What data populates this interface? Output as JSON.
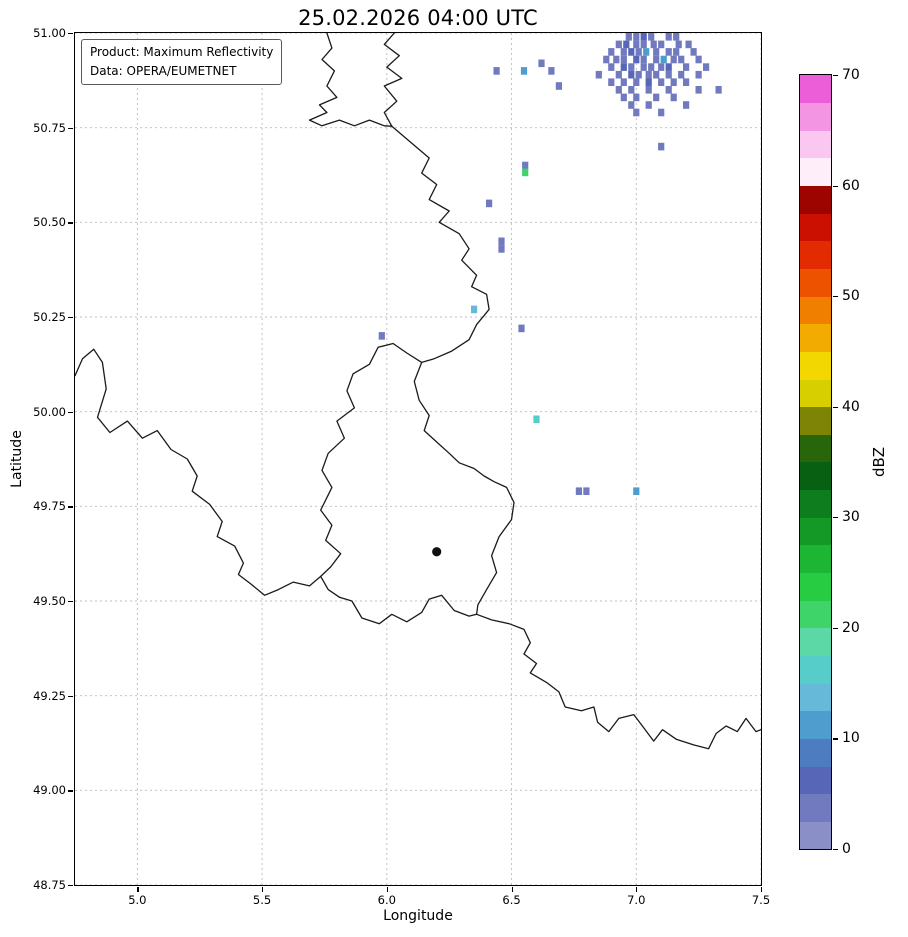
{
  "title": "25.02.2026 04:00 UTC",
  "info_box": {
    "line1": "Product: Maximum Reflectivity",
    "line2": "Data: OPERA/EUMETNET"
  },
  "chart_data": {
    "type": "heatmap",
    "title": "25.02.2026 04:00 UTC",
    "xlabel": "Longitude",
    "ylabel": "Latitude",
    "xlim": [
      4.75,
      7.5
    ],
    "ylim": [
      48.75,
      51.0
    ],
    "grid": true,
    "xticks": [
      {
        "v": 5.0,
        "label": "5.0"
      },
      {
        "v": 5.5,
        "label": "5.5"
      },
      {
        "v": 6.0,
        "label": "6.0"
      },
      {
        "v": 6.5,
        "label": "6.5"
      },
      {
        "v": 7.0,
        "label": "7.0"
      },
      {
        "v": 7.5,
        "label": "7.5"
      }
    ],
    "yticks": [
      {
        "v": 48.75,
        "label": "48.75"
      },
      {
        "v": 49.0,
        "label": "49.00"
      },
      {
        "v": 49.25,
        "label": "49.25"
      },
      {
        "v": 49.5,
        "label": "49.50"
      },
      {
        "v": 49.75,
        "label": "49.75"
      },
      {
        "v": 50.0,
        "label": "50.00"
      },
      {
        "v": 50.25,
        "label": "50.25"
      },
      {
        "v": 50.5,
        "label": "50.50"
      },
      {
        "v": 50.75,
        "label": "50.75"
      },
      {
        "v": 51.0,
        "label": "51.00"
      }
    ],
    "colorbar": {
      "label": "dBZ",
      "min": 0,
      "max": 70,
      "ticks": [
        {
          "v": 0,
          "label": "0"
        },
        {
          "v": 10,
          "label": "10"
        },
        {
          "v": 20,
          "label": "20"
        },
        {
          "v": 30,
          "label": "30"
        },
        {
          "v": 40,
          "label": "40"
        },
        {
          "v": 50,
          "label": "50"
        },
        {
          "v": 60,
          "label": "60"
        },
        {
          "v": 70,
          "label": "70"
        }
      ]
    },
    "colormap": [
      {
        "v": 0.0,
        "c": "#8a8fc7"
      },
      {
        "v": 2.5,
        "c": "#717abf"
      },
      {
        "v": 5.0,
        "c": "#5766b6"
      },
      {
        "v": 7.5,
        "c": "#4d7cc0"
      },
      {
        "v": 10.0,
        "c": "#4f9ccf"
      },
      {
        "v": 12.5,
        "c": "#66b9d9"
      },
      {
        "v": 15.0,
        "c": "#57cdc9"
      },
      {
        "v": 17.5,
        "c": "#5bd8a6"
      },
      {
        "v": 20.0,
        "c": "#3fd46a"
      },
      {
        "v": 22.5,
        "c": "#28cc42"
      },
      {
        "v": 25.0,
        "c": "#1db534"
      },
      {
        "v": 27.5,
        "c": "#149927"
      },
      {
        "v": 30.0,
        "c": "#0d7d1d"
      },
      {
        "v": 32.5,
        "c": "#086113"
      },
      {
        "v": 35.0,
        "c": "#29650b"
      },
      {
        "v": 37.5,
        "c": "#7e8406"
      },
      {
        "v": 40.0,
        "c": "#d8cf00"
      },
      {
        "v": 42.5,
        "c": "#f2d800"
      },
      {
        "v": 45.0,
        "c": "#f2ab00"
      },
      {
        "v": 47.5,
        "c": "#f07f00"
      },
      {
        "v": 50.0,
        "c": "#ec5200"
      },
      {
        "v": 52.5,
        "c": "#e22b00"
      },
      {
        "v": 55.0,
        "c": "#cb0f00"
      },
      {
        "v": 57.5,
        "c": "#9d0400"
      },
      {
        "v": 60.0,
        "c": "#fdeefa"
      },
      {
        "v": 62.5,
        "c": "#f9c7ef"
      },
      {
        "v": 65.0,
        "c": "#f495e3"
      },
      {
        "v": 67.5,
        "c": "#ec5ed8"
      }
    ],
    "cell_size": {
      "lon": 0.025,
      "lat": 0.02
    },
    "radar_cells": [
      [
        6.97,
        50.99,
        3
      ],
      [
        7.0,
        50.99,
        3
      ],
      [
        7.03,
        50.99,
        6
      ],
      [
        7.06,
        50.99,
        3
      ],
      [
        7.13,
        50.99,
        3
      ],
      [
        7.16,
        50.99,
        3
      ],
      [
        6.93,
        50.97,
        3
      ],
      [
        6.96,
        50.97,
        6
      ],
      [
        7.0,
        50.97,
        3
      ],
      [
        7.03,
        50.97,
        3
      ],
      [
        7.07,
        50.97,
        3
      ],
      [
        7.1,
        50.97,
        3
      ],
      [
        7.17,
        50.97,
        3
      ],
      [
        7.21,
        50.97,
        3
      ],
      [
        6.9,
        50.95,
        3
      ],
      [
        6.95,
        50.95,
        3
      ],
      [
        6.98,
        50.95,
        6
      ],
      [
        7.01,
        50.95,
        3
      ],
      [
        7.04,
        50.95,
        10
      ],
      [
        7.08,
        50.95,
        3
      ],
      [
        7.13,
        50.95,
        3
      ],
      [
        7.16,
        50.95,
        3
      ],
      [
        7.23,
        50.95,
        3
      ],
      [
        6.88,
        50.93,
        3
      ],
      [
        6.92,
        50.93,
        3
      ],
      [
        6.95,
        50.93,
        3
      ],
      [
        7.0,
        50.93,
        6
      ],
      [
        7.03,
        50.93,
        3
      ],
      [
        7.08,
        50.93,
        3
      ],
      [
        7.11,
        50.93,
        10
      ],
      [
        7.15,
        50.93,
        3
      ],
      [
        7.18,
        50.93,
        3
      ],
      [
        7.25,
        50.93,
        3
      ],
      [
        6.9,
        50.91,
        3
      ],
      [
        6.95,
        50.91,
        6
      ],
      [
        6.98,
        50.91,
        3
      ],
      [
        7.03,
        50.91,
        3
      ],
      [
        7.06,
        50.91,
        3
      ],
      [
        7.1,
        50.91,
        3
      ],
      [
        7.13,
        50.91,
        6
      ],
      [
        7.2,
        50.91,
        3
      ],
      [
        7.28,
        50.91,
        3
      ],
      [
        6.85,
        50.89,
        3
      ],
      [
        6.93,
        50.89,
        3
      ],
      [
        6.98,
        50.89,
        6
      ],
      [
        7.01,
        50.89,
        3
      ],
      [
        7.05,
        50.89,
        3
      ],
      [
        7.08,
        50.89,
        3
      ],
      [
        7.13,
        50.89,
        3
      ],
      [
        7.18,
        50.89,
        3
      ],
      [
        7.25,
        50.89,
        3
      ],
      [
        6.9,
        50.87,
        3
      ],
      [
        6.95,
        50.87,
        3
      ],
      [
        7.0,
        50.87,
        3
      ],
      [
        7.05,
        50.87,
        6
      ],
      [
        7.1,
        50.87,
        3
      ],
      [
        7.15,
        50.87,
        3
      ],
      [
        7.2,
        50.87,
        3
      ],
      [
        6.93,
        50.85,
        3
      ],
      [
        6.98,
        50.85,
        3
      ],
      [
        7.05,
        50.85,
        3
      ],
      [
        7.13,
        50.85,
        3
      ],
      [
        7.25,
        50.85,
        3
      ],
      [
        7.33,
        50.85,
        3
      ],
      [
        6.95,
        50.83,
        3
      ],
      [
        7.0,
        50.83,
        3
      ],
      [
        7.08,
        50.83,
        3
      ],
      [
        7.15,
        50.83,
        3
      ],
      [
        6.98,
        50.81,
        3
      ],
      [
        7.05,
        50.81,
        3
      ],
      [
        7.2,
        50.81,
        3
      ],
      [
        7.0,
        50.79,
        3
      ],
      [
        7.1,
        50.79,
        3
      ],
      [
        6.62,
        50.92,
        3
      ],
      [
        6.66,
        50.9,
        3
      ],
      [
        6.55,
        50.9,
        10
      ],
      [
        6.44,
        50.9,
        3
      ],
      [
        6.69,
        50.86,
        3
      ],
      [
        7.1,
        50.7,
        3
      ],
      [
        6.555,
        50.65,
        3
      ],
      [
        6.555,
        50.632,
        22
      ],
      [
        6.41,
        50.55,
        3
      ],
      [
        6.46,
        50.45,
        3
      ],
      [
        6.46,
        50.43,
        3
      ],
      [
        6.35,
        50.27,
        13
      ],
      [
        6.54,
        50.22,
        3
      ],
      [
        5.98,
        50.2,
        3
      ],
      [
        6.6,
        49.98,
        17
      ],
      [
        6.77,
        49.79,
        3
      ],
      [
        6.8,
        49.79,
        3
      ],
      [
        7.0,
        49.79,
        10
      ]
    ],
    "borders": [
      [
        [
          5.76,
          51.0
        ],
        [
          5.78,
          50.96
        ],
        [
          5.74,
          50.93
        ],
        [
          5.79,
          50.9
        ],
        [
          5.76,
          50.86
        ],
        [
          5.8,
          50.83
        ],
        [
          5.73,
          50.81
        ],
        [
          5.76,
          50.79
        ],
        [
          5.69,
          50.77
        ],
        [
          5.74,
          50.755
        ],
        [
          5.81,
          50.77
        ],
        [
          5.87,
          50.755
        ],
        [
          5.93,
          50.77
        ],
        [
          5.99,
          50.755
        ],
        [
          6.02,
          50.754
        ]
      ],
      [
        [
          6.02,
          50.754
        ],
        [
          5.99,
          50.79
        ],
        [
          6.04,
          50.82
        ],
        [
          5.99,
          50.86
        ],
        [
          6.06,
          50.88
        ],
        [
          6.0,
          50.91
        ],
        [
          6.05,
          50.94
        ],
        [
          5.99,
          50.97
        ],
        [
          6.03,
          51.0
        ]
      ],
      [
        [
          6.02,
          50.754
        ],
        [
          6.08,
          50.72
        ],
        [
          6.17,
          50.67
        ],
        [
          6.14,
          50.63
        ],
        [
          6.2,
          50.6
        ],
        [
          6.17,
          50.56
        ],
        [
          6.25,
          50.53
        ],
        [
          6.21,
          50.5
        ],
        [
          6.29,
          50.47
        ],
        [
          6.33,
          50.43
        ],
        [
          6.3,
          50.4
        ],
        [
          6.36,
          50.36
        ],
        [
          6.34,
          50.33
        ],
        [
          6.4,
          50.31
        ],
        [
          6.41,
          50.27
        ],
        [
          6.36,
          50.23
        ],
        [
          6.33,
          50.19
        ],
        [
          6.26,
          50.16
        ],
        [
          6.19,
          50.14
        ],
        [
          6.14,
          50.13
        ],
        [
          6.11,
          50.08
        ],
        [
          6.13,
          50.03
        ],
        [
          6.17,
          49.99
        ],
        [
          6.15,
          49.95
        ],
        [
          6.2,
          49.92
        ],
        [
          6.25,
          49.89
        ],
        [
          6.29,
          49.865
        ],
        [
          6.35,
          49.85
        ],
        [
          6.39,
          49.83
        ],
        [
          6.43,
          49.815
        ],
        [
          6.48,
          49.8
        ],
        [
          6.51,
          49.76
        ],
        [
          6.5,
          49.715
        ],
        [
          6.45,
          49.67
        ],
        [
          6.42,
          49.62
        ],
        [
          6.44,
          49.575
        ],
        [
          6.4,
          49.53
        ],
        [
          6.365,
          49.49
        ],
        [
          6.36,
          49.465
        ],
        [
          6.42,
          49.45
        ],
        [
          6.49,
          49.44
        ],
        [
          6.55,
          49.425
        ],
        [
          6.575,
          49.39
        ],
        [
          6.55,
          49.36
        ],
        [
          6.6,
          49.335
        ],
        [
          6.575,
          49.31
        ],
        [
          6.64,
          49.285
        ],
        [
          6.69,
          49.26
        ],
        [
          6.715,
          49.22
        ],
        [
          6.78,
          49.21
        ],
        [
          6.83,
          49.22
        ],
        [
          6.845,
          49.18
        ],
        [
          6.89,
          49.155
        ],
        [
          6.93,
          49.19
        ],
        [
          6.99,
          49.2
        ],
        [
          7.03,
          49.165
        ],
        [
          7.07,
          49.13
        ],
        [
          7.105,
          49.16
        ],
        [
          7.16,
          49.135
        ],
        [
          7.23,
          49.12
        ],
        [
          7.29,
          49.11
        ],
        [
          7.32,
          49.15
        ],
        [
          7.36,
          49.17
        ],
        [
          7.405,
          49.155
        ],
        [
          7.44,
          49.19
        ],
        [
          7.48,
          49.155
        ],
        [
          7.5,
          49.16
        ]
      ],
      [
        [
          6.14,
          50.13
        ],
        [
          6.08,
          50.155
        ],
        [
          6.025,
          50.18
        ],
        [
          5.965,
          50.17
        ],
        [
          5.93,
          50.125
        ],
        [
          5.865,
          50.1
        ],
        [
          5.84,
          50.055
        ],
        [
          5.87,
          50.01
        ],
        [
          5.8,
          49.975
        ],
        [
          5.83,
          49.93
        ],
        [
          5.765,
          49.89
        ],
        [
          5.74,
          49.845
        ],
        [
          5.78,
          49.8
        ],
        [
          5.735,
          49.74
        ],
        [
          5.78,
          49.7
        ],
        [
          5.755,
          49.66
        ],
        [
          5.815,
          49.625
        ],
        [
          5.775,
          49.59
        ],
        [
          5.735,
          49.565
        ],
        [
          5.765,
          49.53
        ],
        [
          5.81,
          49.51
        ]
      ],
      [
        [
          5.81,
          49.51
        ],
        [
          5.86,
          49.5
        ],
        [
          5.9,
          49.455
        ],
        [
          5.97,
          49.44
        ],
        [
          6.02,
          49.465
        ],
        [
          6.08,
          49.445
        ],
        [
          6.14,
          49.47
        ],
        [
          6.17,
          49.505
        ],
        [
          6.22,
          49.515
        ],
        [
          6.27,
          49.475
        ],
        [
          6.33,
          49.46
        ],
        [
          6.36,
          49.465
        ]
      ],
      [
        [
          4.75,
          50.095
        ],
        [
          4.78,
          50.14
        ],
        [
          4.825,
          50.165
        ],
        [
          4.86,
          50.13
        ],
        [
          4.875,
          50.06
        ],
        [
          4.84,
          49.985
        ],
        [
          4.89,
          49.945
        ],
        [
          4.96,
          49.975
        ],
        [
          5.02,
          49.93
        ],
        [
          5.08,
          49.95
        ],
        [
          5.135,
          49.9
        ],
        [
          5.2,
          49.875
        ],
        [
          5.24,
          49.83
        ],
        [
          5.22,
          49.79
        ],
        [
          5.29,
          49.755
        ],
        [
          5.34,
          49.71
        ],
        [
          5.32,
          49.67
        ],
        [
          5.39,
          49.645
        ],
        [
          5.425,
          49.6
        ],
        [
          5.405,
          49.57
        ],
        [
          5.455,
          49.545
        ],
        [
          5.51,
          49.515
        ],
        [
          5.565,
          49.53
        ],
        [
          5.625,
          49.55
        ],
        [
          5.69,
          49.54
        ],
        [
          5.735,
          49.565
        ]
      ]
    ],
    "marker": {
      "lon": 6.2,
      "lat": 49.63
    }
  }
}
